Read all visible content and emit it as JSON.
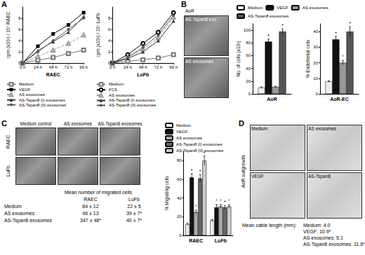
{
  "panel_labels": [
    "A",
    "B",
    "C",
    "D"
  ],
  "chart_data": [
    {
      "type": "line",
      "x_label": "RAEC",
      "y_label": "cpm (x10³) / 10⁴ RAEC",
      "categories": [
        "0 h",
        "24 h",
        "48 h",
        "72 h",
        "96 h"
      ],
      "ylim": [
        0,
        10
      ],
      "yticks": [
        0,
        2,
        4,
        6,
        8
      ],
      "grid": false,
      "legend": "bottom",
      "series": [
        {
          "name": "Medium",
          "color": "#777777",
          "marker": "emptyRect",
          "line_style": "solid",
          "values": [
            0,
            0.5,
            1.0,
            1.7,
            2.3
          ]
        },
        {
          "name": "VEGF",
          "color": "#000000",
          "marker": "rect",
          "line_style": "solid",
          "values": [
            0,
            3.0,
            5.2,
            6.8,
            9.0
          ]
        },
        {
          "name": "AS exosomes",
          "color": "#999999",
          "marker": "emptyTriangle",
          "line_style": "dashed",
          "values": [
            0,
            1.2,
            2.3,
            3.5,
            5.0
          ]
        },
        {
          "name": "AS-Tspan8 (I) exosomes",
          "color": "#333333",
          "marker": "triangle",
          "line_style": "solid",
          "values": [
            0,
            2.2,
            3.8,
            5.5,
            8.3
          ]
        },
        {
          "name": "AS-Tspan8 (II) exosomes",
          "color": "#555555",
          "marker": "diamond",
          "line_style": "solid",
          "values": [
            0,
            2.0,
            4.0,
            6.0,
            8.0
          ]
        }
      ]
    },
    {
      "type": "line",
      "x_label": "LuFb",
      "y_label": "cpm (x10³) / 10⁴ LuFb",
      "categories": [
        "0 h",
        "24 h",
        "48 h",
        "72 h",
        "96 h"
      ],
      "ylim": [
        0,
        10
      ],
      "yticks": [
        0,
        2,
        4,
        6,
        8
      ],
      "grid": false,
      "legend": "bottom",
      "series": [
        {
          "name": "Medium",
          "color": "#777777",
          "marker": "emptyRect",
          "line_style": "solid",
          "values": [
            0,
            0.3,
            0.6,
            0.9,
            1.5
          ]
        },
        {
          "name": "FCS",
          "color": "#000000",
          "marker": "emptyCircle",
          "line_style": "solid",
          "values": [
            0,
            1.5,
            3.5,
            5.5,
            9.0
          ]
        },
        {
          "name": "AS exosomes",
          "color": "#999999",
          "marker": "emptyTriangle",
          "line_style": "dashed",
          "values": [
            0,
            1.0,
            2.5,
            4.5,
            8.2
          ]
        },
        {
          "name": "AS-Tspan8 (I) exosomes",
          "color": "#333333",
          "marker": "triangle",
          "line_style": "solid",
          "values": [
            0,
            0.8,
            2.0,
            4.0,
            7.5
          ]
        },
        {
          "name": "AS-Tspan8 (II) exosomes",
          "color": "#555555",
          "marker": "diamond",
          "line_style": "solid",
          "values": [
            0,
            1.0,
            2.8,
            5.0,
            8.5
          ]
        }
      ]
    },
    {
      "type": "bar",
      "y_label": "No. of cells (x10³)",
      "categories": [
        "AoR"
      ],
      "ylim": [
        0,
        110
      ],
      "yticks": [
        0,
        20,
        40,
        60,
        80,
        100
      ],
      "grid": false,
      "legend": "top",
      "series": [
        {
          "name": "Medium",
          "color": "#eeeeee",
          "values": [
            10
          ],
          "errors": [
            1
          ],
          "significance": [
            null
          ]
        },
        {
          "name": "VEGF",
          "color": "#111111",
          "values": [
            82
          ],
          "errors": [
            4
          ],
          "significance": [
            "*"
          ]
        },
        {
          "name": "AS exosomes",
          "color": "#999999",
          "values": [
            11
          ],
          "errors": [
            1
          ],
          "significance": [
            null
          ]
        },
        {
          "name": "AS-Tspan8 exosomes",
          "color": "#555555",
          "values": [
            98
          ],
          "errors": [
            4
          ],
          "significance": [
            "*"
          ]
        }
      ]
    },
    {
      "type": "bar",
      "y_label": "% Endothelial cells",
      "categories": [
        "AoR-EC"
      ],
      "ylim": [
        0,
        45
      ],
      "yticks": [
        0,
        10,
        20,
        30,
        40
      ],
      "grid": false,
      "series": [
        {
          "name": "Medium",
          "color": "#eeeeee",
          "values": [
            8
          ],
          "errors": [
            0.5
          ],
          "significance": [
            null
          ]
        },
        {
          "name": "VEGF",
          "color": "#111111",
          "values": [
            35
          ],
          "errors": [
            2
          ],
          "significance": [
            "*"
          ]
        },
        {
          "name": "AS exosomes",
          "color": "#999999",
          "values": [
            20
          ],
          "errors": [
            1.5
          ],
          "significance": [
            "°"
          ]
        },
        {
          "name": "AS-Tspan8 exosomes",
          "color": "#555555",
          "values": [
            40
          ],
          "errors": [
            3
          ],
          "significance": [
            "*"
          ]
        }
      ]
    },
    {
      "type": "bar",
      "y_label": "% Migrating cells",
      "categories": [
        "RAEC",
        "LuFb"
      ],
      "ylim": [
        0,
        90
      ],
      "yticks": [
        0,
        20,
        40,
        60,
        80
      ],
      "grid": false,
      "legend": "top",
      "series": [
        {
          "name": "Medium",
          "color": "#eeeeee",
          "values": [
            12,
            16
          ],
          "errors": [
            1,
            1
          ],
          "significance": [
            null,
            null
          ]
        },
        {
          "name": "VEGF",
          "color": "#111111",
          "values": [
            62,
            30
          ],
          "errors": [
            4,
            3
          ],
          "significance": [
            "*",
            "°"
          ]
        },
        {
          "name": "AS exosomes",
          "color": "#aaaaaa",
          "values": [
            25,
            31
          ],
          "errors": [
            2,
            2
          ],
          "significance": [
            "°",
            "°"
          ]
        },
        {
          "name": "AS-Tspan8 (I) exosomes",
          "color": "#666666",
          "values": [
            61,
            30
          ],
          "errors": [
            4,
            2
          ],
          "significance": [
            "*",
            "*"
          ]
        },
        {
          "name": "AS-Tspan8 (II) exosomes",
          "color": "#cccccc",
          "values": [
            80,
            31
          ],
          "errors": [
            5,
            2
          ],
          "significance": [
            "*",
            "°"
          ]
        }
      ]
    }
  ],
  "images": {
    "B": {
      "title": "AoR",
      "labels": [
        "AS-Tspan8 exo",
        "AS exosomes"
      ]
    },
    "C": {
      "columns": [
        "Medium control",
        "AS exosomes",
        "AS-Tspan8 exosomes"
      ],
      "rows": [
        "RAEC",
        "LuFb"
      ]
    },
    "D": {
      "title": "AoR outgrowth",
      "labels": [
        "Medium",
        "AS exosomes",
        "VEGF",
        "AS-Tspan8"
      ]
    }
  },
  "migration_table": {
    "title": "Mean number of migrated cells",
    "columns": [
      "RAEC",
      "LuFb"
    ],
    "rows": [
      [
        "Medium",
        "84 ± 12",
        "22 ± 5"
      ],
      [
        "AS exosomes",
        "96 ± 13",
        "39 ± 7*"
      ],
      [
        "AS-Tspan8 exosomes",
        "347 ± 48*",
        "40 ± 7*"
      ]
    ]
  },
  "cable_length": {
    "title": "Mean cable length (mm):",
    "entries": [
      "Medium: 4.0",
      "VEGF: 10.9*",
      "AS exosomes: 5.1",
      "AS-Tspan8 exosomes: 11.6*"
    ]
  }
}
